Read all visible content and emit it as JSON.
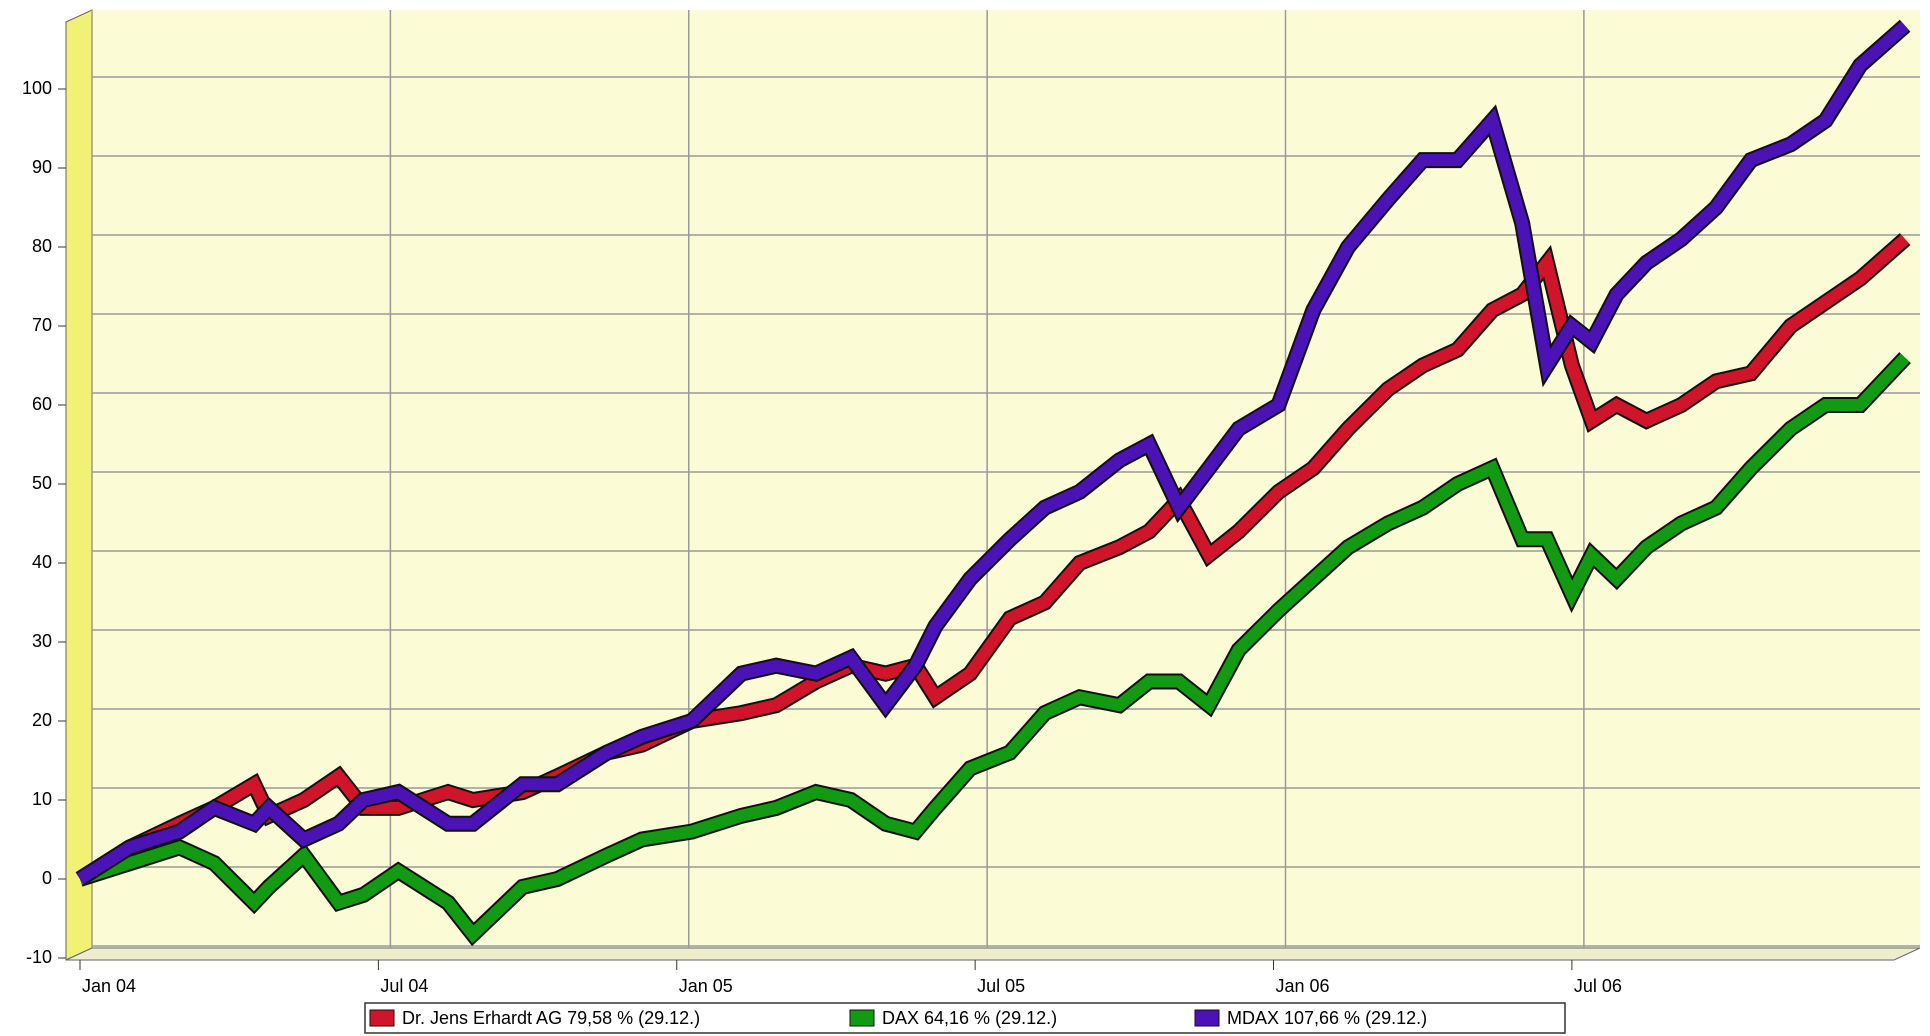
{
  "chart_data": {
    "type": "line",
    "x": [
      0.0,
      1.0,
      2.0,
      2.7,
      3.5,
      3.8,
      4.5,
      5.2,
      5.7,
      6.4,
      7.4,
      7.9,
      8.9,
      9.6,
      10.6,
      11.3,
      12.3,
      13.3,
      14.0,
      14.8,
      15.5,
      16.2,
      16.8,
      17.2,
      17.9,
      18.7,
      19.4,
      20.1,
      20.9,
      21.5,
      22.1,
      22.7,
      23.3,
      24.1,
      24.8,
      25.5,
      26.3,
      27.0,
      27.7,
      28.4,
      29.0,
      29.5,
      30.0,
      30.4,
      30.9,
      31.5,
      32.2,
      32.9,
      33.6,
      34.4,
      35.1,
      35.8,
      36.7
    ],
    "series": [
      {
        "name": "Dr. Jens Erhardt AG  79,58 % (29.12.)",
        "color": "#d0152b",
        "values": [
          0,
          4,
          7,
          9,
          12,
          8,
          10,
          13,
          9,
          9,
          11,
          10,
          11,
          13,
          16,
          17,
          20,
          21,
          22,
          25,
          27,
          26,
          27,
          23,
          26,
          33,
          35,
          40,
          42,
          44,
          48,
          41,
          44,
          49,
          52,
          57,
          62,
          65,
          67,
          72,
          74,
          78,
          65,
          58,
          60,
          58,
          60,
          63,
          64,
          70,
          73,
          76,
          81
        ]
      },
      {
        "name": "DAX  64,16 % (29.12.)",
        "color": "#139a13",
        "values": [
          0,
          2,
          4,
          2,
          -3,
          -1,
          3,
          -3,
          -2,
          1,
          -3,
          -7,
          -1,
          0,
          3,
          5,
          6,
          8,
          9,
          11,
          10,
          7,
          6,
          9,
          14,
          16,
          21,
          23,
          22,
          25,
          25,
          22,
          29,
          34,
          38,
          42,
          45,
          47,
          50,
          52,
          43,
          43,
          36,
          41,
          38,
          42,
          45,
          47,
          52,
          57,
          60,
          60,
          66
        ]
      },
      {
        "name": "MDAX  107,66 % (29.12.)",
        "color": "#4b12b5",
        "values": [
          0,
          4,
          6,
          9,
          7,
          9,
          5,
          7,
          10,
          11,
          7,
          7,
          12,
          12,
          16,
          18,
          20,
          26,
          27,
          26,
          28,
          22,
          27,
          32,
          38,
          43,
          47,
          49,
          53,
          55,
          47,
          52,
          57,
          60,
          72,
          80,
          86,
          91,
          91,
          96,
          83,
          65,
          70,
          68,
          74,
          78,
          81,
          85,
          91,
          93,
          96,
          103,
          108
        ]
      }
    ],
    "xlim": [
      0,
      37
    ],
    "xticks": [
      {
        "value": 0,
        "label": "Jan 04"
      },
      {
        "value": 6,
        "label": "Jul 04"
      },
      {
        "value": 12,
        "label": "Jan 05"
      },
      {
        "value": 18,
        "label": "Jul 05"
      },
      {
        "value": 24,
        "label": "Jan 06"
      },
      {
        "value": 30,
        "label": "Jul 06"
      }
    ],
    "ylim": [
      -10,
      110
    ],
    "yticks": [
      -10,
      0,
      10,
      20,
      30,
      40,
      50,
      60,
      70,
      80,
      90,
      100
    ],
    "grid": true
  }
}
